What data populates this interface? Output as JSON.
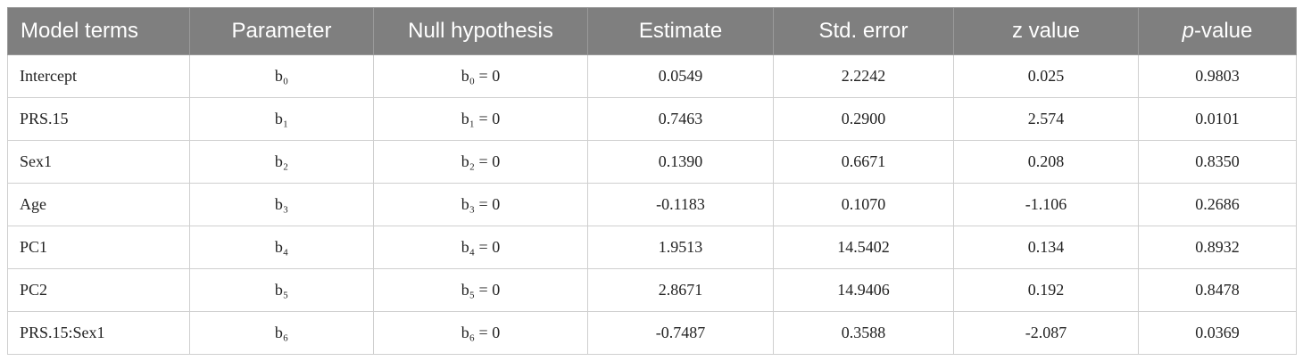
{
  "table": {
    "headers": [
      "Model terms",
      "Parameter",
      "Null hypothesis",
      "Estimate",
      "Std. error",
      "z value",
      {
        "italic": "p",
        "rest": "-value"
      }
    ],
    "rows": [
      [
        "Intercept",
        "b₀",
        "b₀ = 0",
        "0.0549",
        "2.2242",
        "0.025",
        "0.9803"
      ],
      [
        "PRS.15",
        "b₁",
        "b₁ = 0",
        "0.7463",
        "0.2900",
        "2.574",
        "0.0101"
      ],
      [
        "Sex1",
        "b₂",
        "b₂ = 0",
        "0.1390",
        "0.6671",
        "0.208",
        "0.8350"
      ],
      [
        "Age",
        "b₃",
        "b₃ = 0",
        "-0.1183",
        "0.1070",
        "-1.106",
        "0.2686"
      ],
      [
        "PC1",
        "b₄",
        "b₄ = 0",
        "1.9513",
        "14.5402",
        "0.134",
        "0.8932"
      ],
      [
        "PC2",
        "b₅",
        "b₅ = 0",
        "2.8671",
        "14.9406",
        "0.192",
        "0.8478"
      ],
      [
        "PRS.15:Sex1",
        "b₆",
        "b₆ = 0",
        "-0.7487",
        "0.3588",
        "-2.087",
        "0.0369"
      ]
    ]
  }
}
